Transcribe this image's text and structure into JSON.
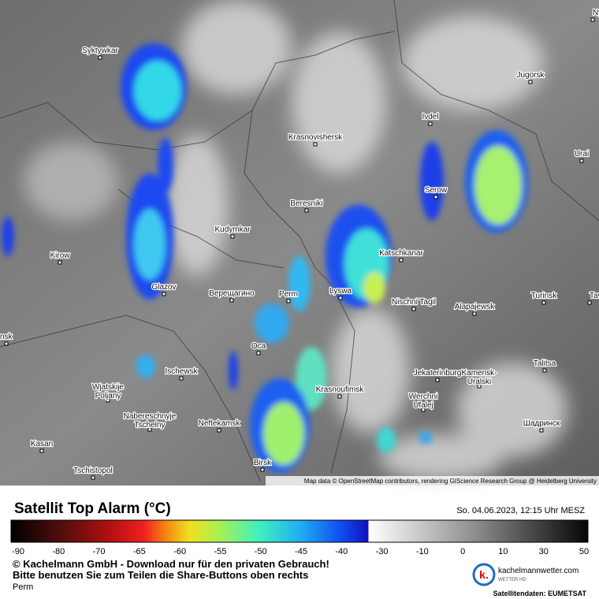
{
  "map": {
    "cities": [
      {
        "lines": [
          "Syktywkar"
        ]
      },
      {
        "lines": [
          "Jugorsk"
        ]
      },
      {
        "lines": [
          "Ivdel"
        ]
      },
      {
        "lines": [
          "Krasnovishersk"
        ]
      },
      {
        "lines": [
          "Urai"
        ]
      },
      {
        "lines": [
          "Serow"
        ]
      },
      {
        "lines": [
          "Beresniki"
        ]
      },
      {
        "lines": [
          "Kudymkar"
        ]
      },
      {
        "lines": [
          "Katschkanar"
        ]
      },
      {
        "lines": [
          "Kirow"
        ]
      },
      {
        "lines": [
          "Glazov"
        ]
      },
      {
        "lines": [
          "Верещагино"
        ]
      },
      {
        "lines": [
          "Perm"
        ]
      },
      {
        "lines": [
          "Lyswa"
        ]
      },
      {
        "lines": [
          "Nischni Tagil"
        ]
      },
      {
        "lines": [
          "Alapajewsk"
        ]
      },
      {
        "lines": [
          "Turinsk"
        ]
      },
      {
        "lines": [
          "Tav"
        ]
      },
      {
        "lines": [
          "Оса"
        ]
      },
      {
        "lines": [
          "nsk"
        ]
      },
      {
        "lines": [
          "Talitsa"
        ]
      },
      {
        "lines": [
          "Ischewsk"
        ]
      },
      {
        "lines": [
          "Jekaterinburg"
        ]
      },
      {
        "lines": [
          "Krasnoufimsk"
        ]
      },
      {
        "lines": [
          "Kamensk-",
          "Uralski"
        ]
      },
      {
        "lines": [
          "Wjatskije",
          "Poljany"
        ]
      },
      {
        "lines": [
          "Neftekamsk"
        ]
      },
      {
        "lines": [
          "Werchni",
          "Ufalej"
        ]
      },
      {
        "lines": [
          "Шадринск"
        ]
      },
      {
        "lines": [
          "Nabereschnyje",
          "Tschelny"
        ]
      },
      {
        "lines": [
          "Kasan"
        ]
      },
      {
        "lines": [
          "Birsk"
        ]
      },
      {
        "lines": [
          "Tschistopol"
        ]
      },
      {
        "lines": [
          "Ny"
        ]
      }
    ],
    "attribution": "Map data © OpenStreetMap contributors, rendering GIScience Research Group @ Heidelberg University"
  },
  "legend": {
    "title": "Satellit Top Alarm (°C)",
    "date": "So. 04.06.2023, 12:15 Uhr MESZ",
    "tick_labels": [
      -90,
      -80,
      -70,
      -65,
      -60,
      -55,
      -50,
      -45,
      -40,
      -30,
      -10,
      0,
      10,
      30,
      50
    ]
  },
  "footer": {
    "copyright": "© Kachelmann GmbH - Download nur für den privaten Gebrauch!",
    "share_note": "Bitte benutzen Sie zum Teilen die Share-Buttons oben rechts",
    "location": "Perm",
    "logo_text": "kachelmannwetter.com",
    "logo_sub": "WETTER HD",
    "source": "Satellitendaten: EUMETSAT"
  }
}
